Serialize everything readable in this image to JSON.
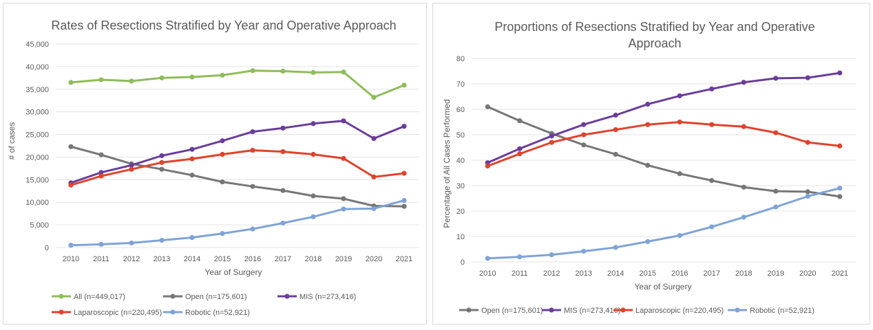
{
  "colors": {
    "All": "#8fbc5a",
    "Open": "#767676",
    "MIS": "#6a3d9a",
    "Laparoscopic": "#e0422c",
    "Robotic": "#7fa3d8",
    "grid": "#e3e3e3",
    "text": "#595959"
  },
  "chart_data": [
    {
      "type": "line",
      "title": "Rates of Resections Stratified by Year and Operative Approach",
      "xlabel": "Year of Surgery",
      "ylabel": "# of cases",
      "ylim": [
        0,
        45000
      ],
      "yticks": [
        0,
        5000,
        10000,
        15000,
        20000,
        25000,
        30000,
        35000,
        40000,
        45000
      ],
      "ytick_labels": [
        "0",
        "5,000",
        "10,000",
        "15,000",
        "20,000",
        "25,000",
        "30,000",
        "35,000",
        "40,000",
        "45,000"
      ],
      "grid": true,
      "legend_position": "bottom",
      "categories": [
        "2010",
        "2011",
        "2012",
        "2013",
        "2014",
        "2015",
        "2016",
        "2017",
        "2018",
        "2019",
        "2020",
        "2021"
      ],
      "series": [
        {
          "key": "All",
          "name": "All (n=449,017)",
          "values": [
            36500,
            37100,
            36800,
            37500,
            37700,
            38100,
            39100,
            39000,
            38700,
            38800,
            33200,
            35900
          ]
        },
        {
          "key": "Open",
          "name": "Open (n=175,601)",
          "values": [
            22300,
            20500,
            18500,
            17300,
            16000,
            14500,
            13500,
            12600,
            11400,
            10800,
            9200,
            9100
          ]
        },
        {
          "key": "MIS",
          "name": "MIS (n=273,416)",
          "values": [
            14300,
            16600,
            18200,
            20300,
            21700,
            23600,
            25600,
            26400,
            27400,
            28000,
            24100,
            26800
          ]
        },
        {
          "key": "Laparoscopic",
          "name": "Laparoscopic (n=220,495)",
          "values": [
            13800,
            15800,
            17300,
            18800,
            19600,
            20600,
            21500,
            21200,
            20600,
            19700,
            15600,
            16400
          ]
        },
        {
          "key": "Robotic",
          "name": "Robotic (n=52,921)",
          "values": [
            500,
            700,
            1000,
            1600,
            2200,
            3100,
            4100,
            5400,
            6800,
            8500,
            8600,
            10400
          ]
        }
      ]
    },
    {
      "type": "line",
      "title_lines": [
        "Proportions of Resections Stratified by Year and Operative",
        "Approach"
      ],
      "xlabel": "Year of Surgery",
      "ylabel": "Percentage of All Cases Performed",
      "ylim": [
        0,
        80
      ],
      "yticks": [
        0,
        10,
        20,
        30,
        40,
        50,
        60,
        70,
        80
      ],
      "ytick_labels": [
        "0",
        "10",
        "20",
        "30",
        "40",
        "50",
        "60",
        "70",
        "80"
      ],
      "grid": true,
      "legend_position": "bottom",
      "categories": [
        "2010",
        "2011",
        "2012",
        "2013",
        "2014",
        "2015",
        "2016",
        "2017",
        "2018",
        "2019",
        "2020",
        "2021"
      ],
      "series": [
        {
          "key": "Open",
          "name": "Open (n=175,601)",
          "values": [
            61,
            55.5,
            50.5,
            46,
            42.3,
            38,
            34.7,
            32,
            29.4,
            27.8,
            27.6,
            25.7
          ]
        },
        {
          "key": "MIS",
          "name": "MIS (n=273,416)",
          "values": [
            39,
            44.5,
            49.5,
            54,
            57.7,
            62,
            65.3,
            68,
            70.6,
            72.2,
            72.4,
            74.3
          ]
        },
        {
          "key": "Laparoscopic",
          "name": "Laparoscopic (n=220,495)",
          "values": [
            37.7,
            42.5,
            47,
            50,
            52,
            54,
            55,
            54,
            53.2,
            50.8,
            47,
            45.6
          ]
        },
        {
          "key": "Robotic",
          "name": "Robotic (n=52,921)",
          "values": [
            1.4,
            2,
            2.8,
            4.2,
            5.7,
            8,
            10.4,
            13.8,
            17.6,
            21.6,
            25.8,
            29
          ]
        }
      ]
    }
  ]
}
